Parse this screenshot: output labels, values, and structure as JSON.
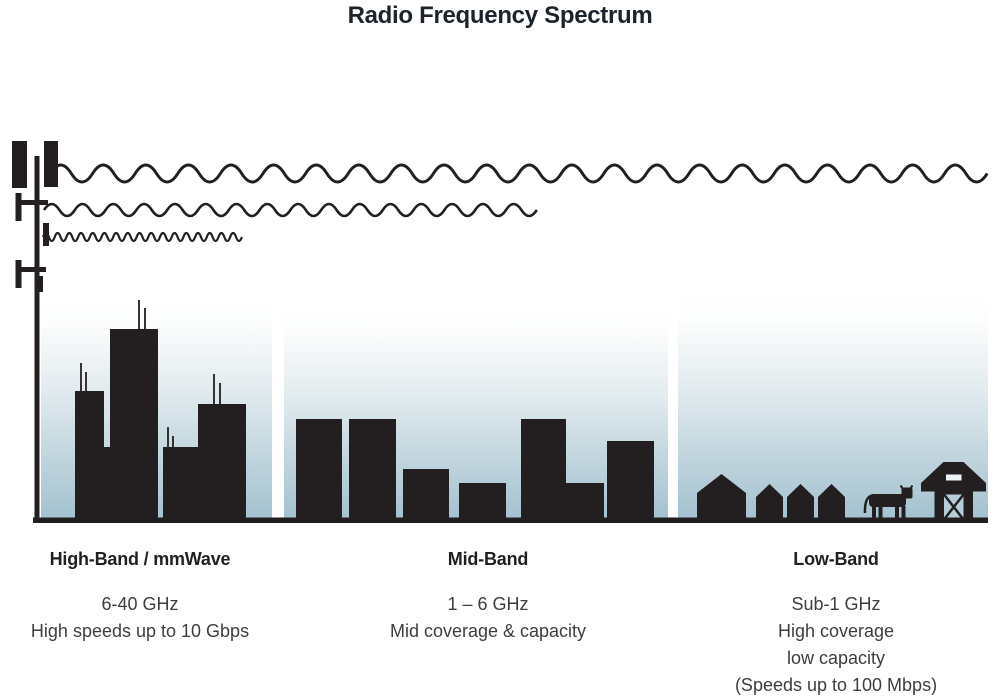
{
  "title": "Radio Frequency Spectrum",
  "bands": [
    {
      "name": "High-Band / mmWave",
      "frequency": "6-40 GHz",
      "details": [
        "High speeds up to 10 Gbps"
      ]
    },
    {
      "name": "Mid-Band",
      "frequency": "1 – 6 GHz",
      "details": [
        "Mid coverage & capacity"
      ]
    },
    {
      "name": "Low-Band",
      "frequency": "Sub-1 GHz",
      "details": [
        "High coverage",
        "low capacity",
        "(Speeds up to 100 Mbps)"
      ]
    }
  ],
  "icons": {
    "cell_tower": "black mast with antenna panels",
    "high_band_wave": "short-wavelength sine wave, shortest reach",
    "mid_band_wave": "medium-wavelength sine wave, medium reach",
    "low_band_wave": "long-wavelength sine wave, spans full width",
    "city_skyline": "tall skyscraper silhouettes",
    "midrise_skyline": "mid-rise building silhouettes",
    "house": "small pitched-roof house silhouette",
    "cow": "cow silhouette",
    "barn": "barn with X-brace door"
  },
  "colors": {
    "ink": "#231f20",
    "title": "#1d232c",
    "text": "#3e3e3e",
    "sky_top": "#ffffff",
    "sky_mid": "#dfe9ed",
    "sky_bottom": "#a4c2d0"
  }
}
